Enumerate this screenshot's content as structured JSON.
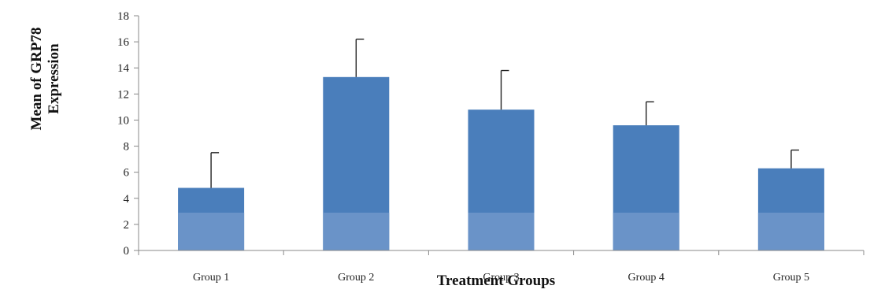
{
  "chart_data": {
    "type": "bar",
    "title": "",
    "xlabel": "Treatment Groups",
    "ylabel_lines": [
      "Mean of GRP78",
      "Expression"
    ],
    "categories": [
      "Group 1",
      "Group 2",
      "Group 3",
      "Group 4",
      "Group 5"
    ],
    "values": [
      4.8,
      13.3,
      10.8,
      9.6,
      6.3
    ],
    "error_upper": [
      2.7,
      2.9,
      3.0,
      1.8,
      1.4
    ],
    "ylim": [
      0,
      18
    ],
    "yticks": [
      0,
      2,
      4,
      6,
      8,
      10,
      12,
      14,
      16,
      18
    ],
    "grid": false,
    "legend": "none",
    "colors": {
      "bar": "#4a7ebb",
      "bar_lower": "#6a93c8",
      "axis": "#888888",
      "error_bar": "#222222"
    }
  }
}
